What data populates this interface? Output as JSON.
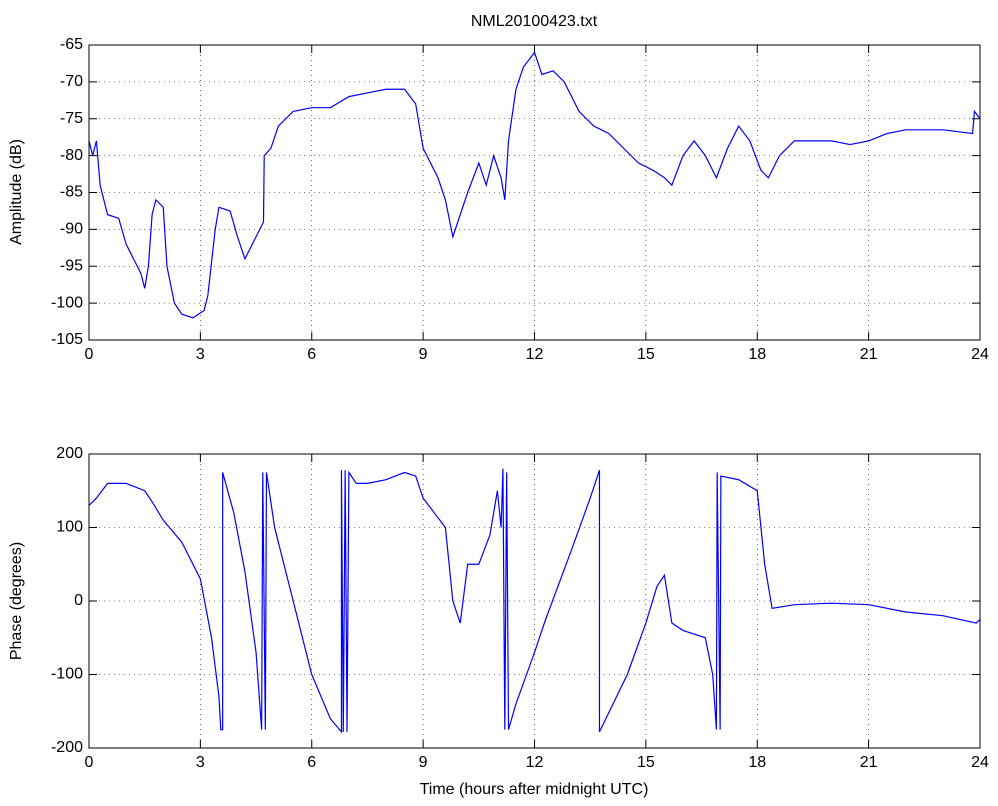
{
  "chart_data": [
    {
      "type": "line",
      "title": "NML20100423.txt",
      "ylabel": "Amplitude (dB)",
      "color": "#0000ff",
      "grid": true,
      "xlim": [
        0,
        24
      ],
      "xticks": [
        0,
        3,
        6,
        9,
        12,
        15,
        18,
        21,
        24
      ],
      "ylim": [
        -105,
        -65
      ],
      "yticks": [
        -105,
        -100,
        -95,
        -90,
        -85,
        -80,
        -75,
        -70,
        -65
      ],
      "x": [
        0,
        0.1,
        0.2,
        0.3,
        0.5,
        0.8,
        1.0,
        1.2,
        1.4,
        1.5,
        1.6,
        1.7,
        1.8,
        2.0,
        2.1,
        2.3,
        2.5,
        2.8,
        3.1,
        3.2,
        3.4,
        3.5,
        3.8,
        4.0,
        4.2,
        4.4,
        4.6,
        4.7,
        4.72,
        4.9,
        5.1,
        5.5,
        6,
        6.5,
        7,
        7.5,
        8,
        8.5,
        8.8,
        9,
        9.2,
        9.4,
        9.6,
        9.8,
        10,
        10.2,
        10.5,
        10.7,
        10.9,
        11.1,
        11.2,
        11.3,
        11.5,
        11.7,
        12.0,
        12.2,
        12.5,
        12.8,
        13.2,
        13.6,
        14,
        14.4,
        14.8,
        15.2,
        15.5,
        15.7,
        16,
        16.3,
        16.6,
        16.9,
        17.2,
        17.5,
        17.8,
        18.1,
        18.3,
        18.6,
        19,
        19.5,
        20,
        20.5,
        21,
        21.5,
        22,
        23,
        23.8,
        23.85,
        24
      ],
      "values": [
        -78,
        -80,
        -78,
        -84,
        -88,
        -88.5,
        -92,
        -94,
        -96,
        -98,
        -95,
        -88,
        -86,
        -87,
        -95,
        -100,
        -101.5,
        -102,
        -101,
        -99,
        -90,
        -87,
        -87.5,
        -91,
        -94,
        -92,
        -90,
        -89,
        -80,
        -79,
        -76,
        -74,
        -73.5,
        -73.5,
        -72,
        -71.5,
        -71,
        -71,
        -73,
        -79,
        -81,
        -83,
        -86,
        -91,
        -88,
        -85,
        -81,
        -84,
        -80,
        -83,
        -86,
        -78,
        -71,
        -68,
        -66,
        -69,
        -68.5,
        -70,
        -74,
        -76,
        -77,
        -79,
        -81,
        -82,
        -83,
        -84,
        -80,
        -78,
        -80,
        -83,
        -79,
        -76,
        -78,
        -82,
        -83,
        -80,
        -78,
        -78,
        -78,
        -78.5,
        -78,
        -77,
        -76.5,
        -76.5,
        -77,
        -74,
        -75
      ]
    },
    {
      "type": "line",
      "ylabel": "Phase (degrees)",
      "xlabel": "Time (hours after midnight UTC)",
      "color": "#0000ff",
      "grid": true,
      "xlim": [
        0,
        24
      ],
      "xticks": [
        0,
        3,
        6,
        9,
        12,
        15,
        18,
        21,
        24
      ],
      "ylim": [
        -200,
        200
      ],
      "yticks": [
        -200,
        -100,
        0,
        100,
        200
      ],
      "x": [
        0,
        0.2,
        0.5,
        1,
        1.5,
        1.7,
        2,
        2.5,
        3,
        3.3,
        3.5,
        3.55,
        3.6,
        3.6,
        3.9,
        4.2,
        4.5,
        4.65,
        4.68,
        4.75,
        4.78,
        5.0,
        5.5,
        6.0,
        6.5,
        6.8,
        6.8,
        6.85,
        6.9,
        6.95,
        7.0,
        7.2,
        7.5,
        8,
        8.5,
        8.8,
        9,
        9.3,
        9.6,
        9.8,
        10.0,
        10.2,
        10.5,
        10.8,
        11,
        11.1,
        11.15,
        11.2,
        11.25,
        11.3,
        11.5,
        12,
        12.3,
        13,
        13.5,
        13.75,
        13.75,
        14.5,
        15,
        15.3,
        15.5,
        15.7,
        16,
        16.6,
        16.8,
        16.9,
        16.92,
        17,
        17.02,
        17.5,
        18,
        18.2,
        18.4,
        19,
        20,
        21,
        22,
        23,
        23.9,
        24
      ],
      "values": [
        130,
        140,
        160,
        160,
        150,
        135,
        110,
        80,
        30,
        -50,
        -130,
        -175,
        -175,
        175,
        120,
        40,
        -70,
        -175,
        175,
        -175,
        175,
        100,
        0,
        -100,
        -160,
        -178,
        178,
        -178,
        178,
        -178,
        175,
        160,
        160,
        165,
        175,
        170,
        140,
        120,
        100,
        0,
        -30,
        50,
        50,
        90,
        150,
        100,
        180,
        -175,
        175,
        -175,
        -140,
        -70,
        -25,
        70,
        140,
        178,
        -178,
        -100,
        -30,
        20,
        35,
        -30,
        -40,
        -50,
        -100,
        -175,
        175,
        -175,
        170,
        165,
        150,
        50,
        -10,
        -5,
        -3,
        -5,
        -15,
        -20,
        -30,
        -25
      ]
    }
  ]
}
